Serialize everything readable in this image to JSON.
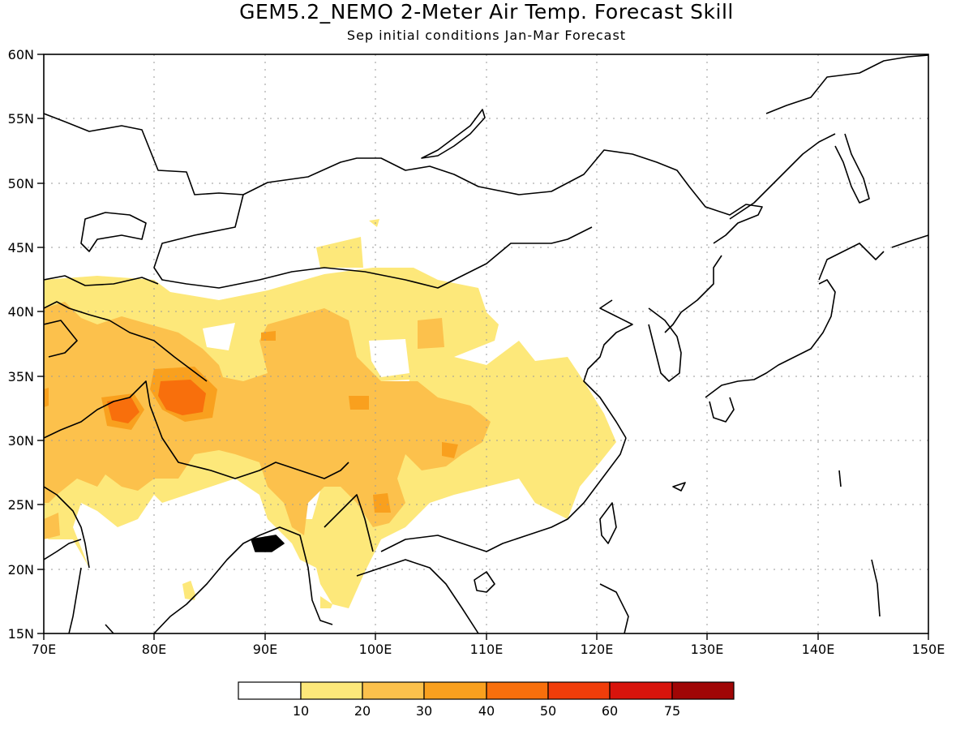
{
  "title": "GEM5.2_NEMO 2-Meter Air Temp. Forecast Skill",
  "subtitle": "Sep initial conditions  Jan-Mar Forecast",
  "map": {
    "lon_range": [
      70,
      150
    ],
    "lat_range": [
      15,
      60
    ],
    "lon_ticks": [
      "70E",
      "80E",
      "90E",
      "100E",
      "110E",
      "120E",
      "130E",
      "140E",
      "150E"
    ],
    "lat_ticks": [
      "15N",
      "20N",
      "25N",
      "30N",
      "35N",
      "40N",
      "45N",
      "50N",
      "55N",
      "60N"
    ],
    "grid": "dotted",
    "land_outline_color": "#000000"
  },
  "colorbar": {
    "labels": [
      "10",
      "20",
      "30",
      "40",
      "50",
      "60",
      "75"
    ],
    "colors": [
      "#ffffff",
      "#fde87a",
      "#fcc14c",
      "#f9a01e",
      "#f86f0c",
      "#f03d0a",
      "#d8140c",
      "#a00606"
    ]
  }
}
